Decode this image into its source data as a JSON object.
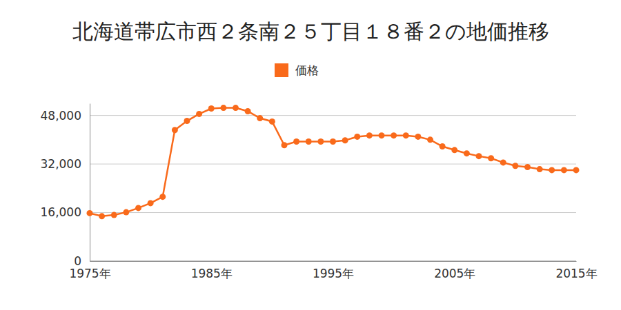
{
  "chart_data": {
    "type": "line",
    "title": "北海道帯広市西２条南２５丁目１８番２の地価推移",
    "x": [
      1975,
      1976,
      1977,
      1978,
      1979,
      1980,
      1981,
      1982,
      1983,
      1984,
      1985,
      1986,
      1987,
      1988,
      1989,
      1990,
      1991,
      1992,
      1993,
      1994,
      1995,
      1996,
      1997,
      1998,
      1999,
      2000,
      2001,
      2002,
      2003,
      2004,
      2005,
      2006,
      2007,
      2008,
      2009,
      2010,
      2011,
      2012,
      2013,
      2014,
      2015
    ],
    "series": [
      {
        "name": "価格",
        "color": "#f96a1b",
        "marker": "circle",
        "values": [
          15800,
          14800,
          15200,
          16100,
          17500,
          19100,
          21200,
          43200,
          46200,
          48500,
          50300,
          50500,
          50500,
          49400,
          47100,
          46000,
          38200,
          39400,
          39400,
          39400,
          39400,
          39800,
          41000,
          41400,
          41400,
          41400,
          41400,
          41000,
          40000,
          37800,
          36600,
          35500,
          34600,
          33900,
          32500,
          31400,
          31000,
          30300,
          30000,
          30000,
          30000
        ]
      }
    ],
    "xlim": [
      1975,
      2015
    ],
    "xticks": [
      {
        "value": 1975,
        "label": "1975年"
      },
      {
        "value": 1985,
        "label": "1985年"
      },
      {
        "value": 1995,
        "label": "1995年"
      },
      {
        "value": 2005,
        "label": "2005年"
      },
      {
        "value": 2015,
        "label": "2015年"
      }
    ],
    "ylim": [
      0,
      52000
    ],
    "yticks": [
      0,
      {
        "value": 16000,
        "label": "16,000"
      },
      {
        "value": 32000,
        "label": "32,000"
      },
      {
        "value": 48000,
        "label": "48,000"
      }
    ],
    "grid": true,
    "legend": "top"
  }
}
